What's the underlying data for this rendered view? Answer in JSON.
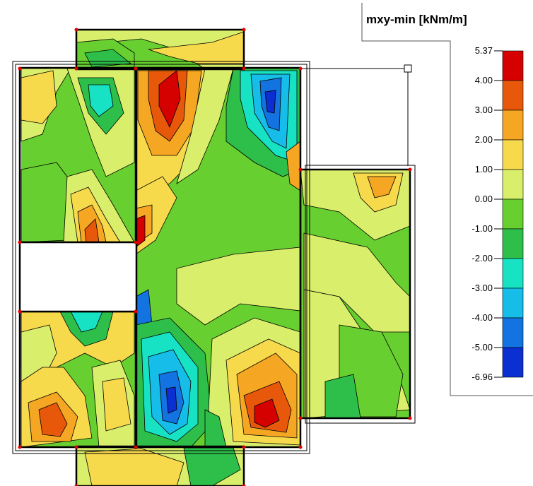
{
  "legend": {
    "title": "mxy-min [kNm/m]",
    "levels": [
      "5.37",
      "4.00",
      "3.00",
      "2.00",
      "1.00",
      "0.00",
      "-1.00",
      "-2.00",
      "-3.00",
      "-4.00",
      "-5.00",
      "-6.96"
    ],
    "colors": [
      "#d50000",
      "#e8580a",
      "#f5a623",
      "#f7d94c",
      "#d9ee6a",
      "#67cf2f",
      "#2dbf4a",
      "#17e3c4",
      "#15bde8",
      "#1373e0",
      "#0b2fd0"
    ]
  },
  "palette": {
    "red": "#d50000",
    "dark-orange": "#e8580a",
    "orange": "#f5a623",
    "yellow": "#f7d94c",
    "light-yellow-green": "#d9ee6a",
    "green": "#67cf2f",
    "mid-green": "#2dbf4a",
    "cyan": "#17e3c4",
    "light-blue": "#15bde8",
    "blue": "#1373e0",
    "dark-blue": "#0b2fd0",
    "node": "#e00000"
  }
}
